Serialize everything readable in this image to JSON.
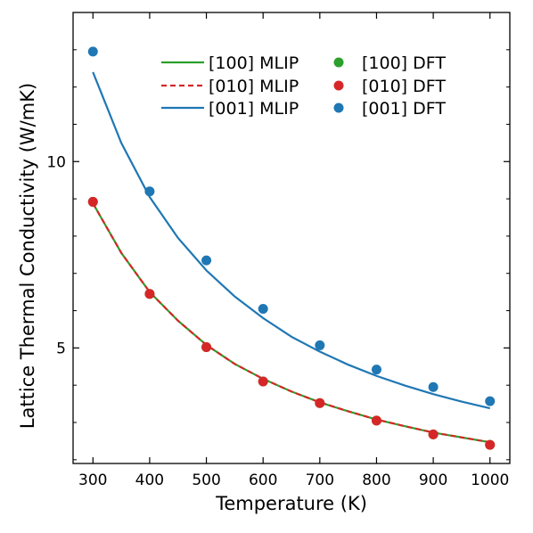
{
  "chart_data": {
    "type": "line",
    "title": "",
    "xlabel": "Temperature (K)",
    "ylabel": "Lattice Thermal Conductivity (W/mK)",
    "xlim": [
      265,
      1035
    ],
    "ylim": [
      1.9,
      14.0
    ],
    "xticks": [
      300,
      400,
      500,
      600,
      700,
      800,
      900,
      1000
    ],
    "xtick_labels": [
      "300",
      "400",
      "500",
      "600",
      "700",
      "800",
      "900",
      "1000"
    ],
    "yticks": [
      5,
      10
    ],
    "ytick_labels": [
      "5",
      "10"
    ],
    "grid": false,
    "legend_position": "top-right",
    "series": [
      {
        "name": "[100] MLIP",
        "kind": "line",
        "style": "solid",
        "color": "#2ca02c",
        "x": [
          300,
          350,
          400,
          450,
          500,
          550,
          600,
          650,
          700,
          750,
          800,
          850,
          900,
          950,
          1000
        ],
        "y": [
          8.88,
          7.55,
          6.5,
          5.73,
          5.08,
          4.57,
          4.17,
          3.83,
          3.54,
          3.3,
          3.08,
          2.9,
          2.73,
          2.6,
          2.47
        ]
      },
      {
        "name": "[010] MLIP",
        "kind": "line",
        "style": "dashed",
        "color": "#d62728",
        "x": [
          300,
          350,
          400,
          450,
          500,
          550,
          600,
          650,
          700,
          750,
          800,
          850,
          900,
          950,
          1000
        ],
        "y": [
          8.88,
          7.55,
          6.5,
          5.73,
          5.08,
          4.57,
          4.17,
          3.83,
          3.54,
          3.3,
          3.08,
          2.9,
          2.73,
          2.6,
          2.47
        ]
      },
      {
        "name": "[001] MLIP",
        "kind": "line",
        "style": "solid",
        "color": "#1f77b4",
        "x": [
          300,
          350,
          400,
          450,
          500,
          550,
          600,
          650,
          700,
          750,
          800,
          850,
          900,
          950,
          1000
        ],
        "y": [
          12.4,
          10.5,
          9.05,
          7.95,
          7.08,
          6.38,
          5.8,
          5.3,
          4.9,
          4.55,
          4.25,
          3.99,
          3.76,
          3.56,
          3.38
        ]
      },
      {
        "name": "[100] DFT",
        "kind": "scatter",
        "color": "#2ca02c",
        "x": [
          300,
          400,
          500,
          600,
          700,
          800,
          900,
          1000
        ],
        "y": [
          8.92,
          6.45,
          5.02,
          4.1,
          3.52,
          3.05,
          2.68,
          2.4
        ]
      },
      {
        "name": "[010] DFT",
        "kind": "scatter",
        "color": "#d62728",
        "x": [
          300,
          400,
          500,
          600,
          700,
          800,
          900,
          1000
        ],
        "y": [
          8.92,
          6.45,
          5.02,
          4.1,
          3.52,
          3.05,
          2.68,
          2.4
        ]
      },
      {
        "name": "[001] DFT",
        "kind": "scatter",
        "color": "#1f77b4",
        "x": [
          300,
          400,
          500,
          600,
          700,
          800,
          900,
          1000
        ],
        "y": [
          12.95,
          9.2,
          7.35,
          6.05,
          5.07,
          4.42,
          3.95,
          3.57
        ]
      }
    ]
  }
}
